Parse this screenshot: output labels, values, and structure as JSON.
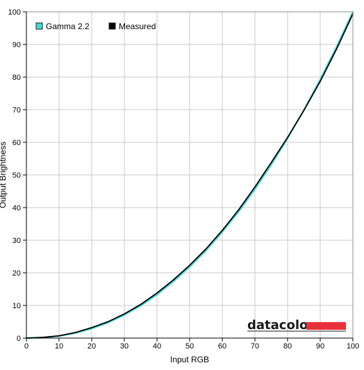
{
  "chart_data": {
    "type": "line",
    "xlabel": "Input RGB",
    "ylabel": "Output Brightness",
    "xlim": [
      0,
      100
    ],
    "ylim": [
      0,
      100
    ],
    "x_ticks": [
      0,
      10,
      20,
      30,
      40,
      50,
      60,
      70,
      80,
      90,
      100
    ],
    "y_ticks": [
      0,
      10,
      20,
      30,
      40,
      50,
      60,
      70,
      80,
      90,
      100
    ],
    "grid": true,
    "legend_position": "top-left",
    "series": [
      {
        "name": "Gamma 2.2",
        "color": "#40d8d8",
        "x": [
          0,
          5,
          10,
          15,
          20,
          25,
          30,
          35,
          40,
          45,
          50,
          55,
          60,
          65,
          70,
          75,
          80,
          85,
          90,
          95,
          100
        ],
        "y": [
          0,
          0.14,
          0.63,
          1.5,
          2.9,
          4.7,
          7.1,
          9.9,
          13.3,
          17.3,
          21.8,
          26.8,
          32.5,
          38.7,
          45.6,
          53.1,
          61.2,
          69.9,
          79.3,
          89.3,
          100
        ]
      },
      {
        "name": "Measured",
        "color": "#000000",
        "x": [
          0,
          5,
          10,
          15,
          20,
          25,
          30,
          35,
          40,
          45,
          50,
          55,
          60,
          65,
          70,
          75,
          80,
          85,
          90,
          95,
          100
        ],
        "y": [
          0,
          0.2,
          0.7,
          1.7,
          3.2,
          5.0,
          7.4,
          10.3,
          13.8,
          17.8,
          22.3,
          27.3,
          33.0,
          39.3,
          46.3,
          53.8,
          61.5,
          69.8,
          78.7,
          88.6,
          99.4
        ]
      }
    ],
    "logo": {
      "text": "datacolor",
      "bar_color": "#e8303a"
    }
  }
}
